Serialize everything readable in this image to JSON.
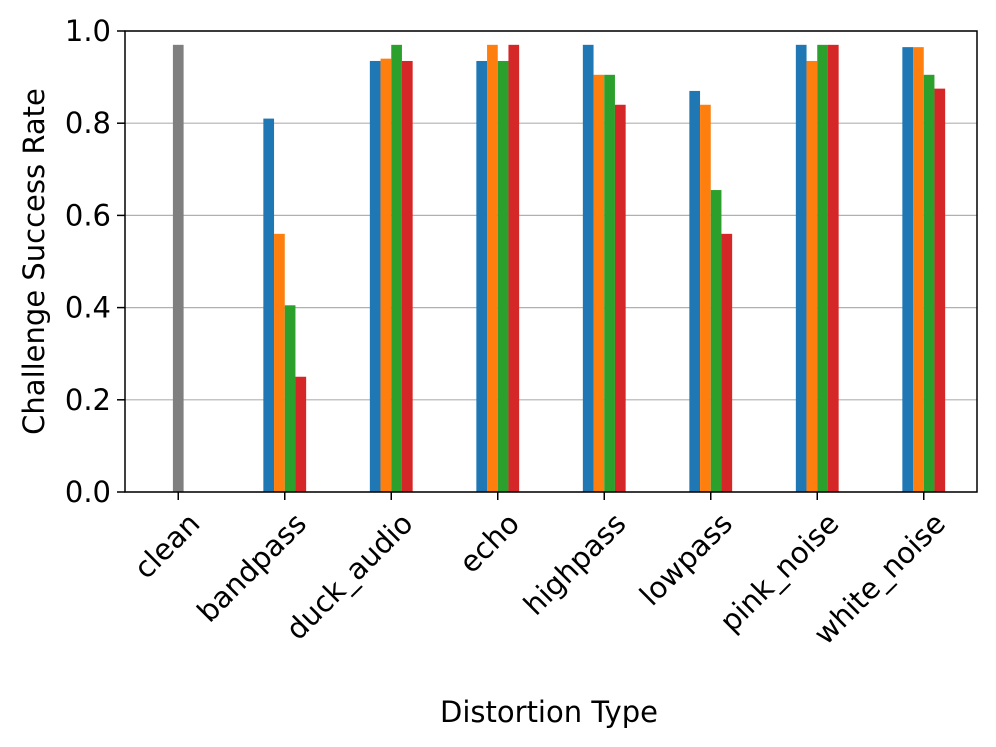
{
  "chart_data": {
    "type": "bar",
    "title": "",
    "xlabel": "Distortion Type",
    "ylabel": "Challenge Success Rate",
    "ylim": [
      0.0,
      1.0
    ],
    "yticks": [
      "0.0",
      "0.2",
      "0.4",
      "0.6",
      "0.8",
      "1.0"
    ],
    "grid": "horizontal",
    "categories": [
      "clean",
      "bandpass",
      "duck_audio",
      "echo",
      "highpass",
      "lowpass",
      "pink_noise",
      "white_noise"
    ],
    "baseline": {
      "category": "clean",
      "value": 0.97,
      "color": "#7f7f7f"
    },
    "series": [
      {
        "color": "#1f77b4",
        "values": [
          null,
          0.81,
          0.935,
          0.935,
          0.97,
          0.87,
          0.97,
          0.965
        ]
      },
      {
        "color": "#ff7f0e",
        "values": [
          null,
          0.56,
          0.94,
          0.97,
          0.905,
          0.84,
          0.935,
          0.965
        ]
      },
      {
        "color": "#2ca02c",
        "values": [
          null,
          0.405,
          0.97,
          0.935,
          0.905,
          0.655,
          0.97,
          0.905
        ]
      },
      {
        "color": "#d62728",
        "values": [
          null,
          0.25,
          0.935,
          0.97,
          0.84,
          0.56,
          0.97,
          0.875
        ]
      }
    ]
  }
}
